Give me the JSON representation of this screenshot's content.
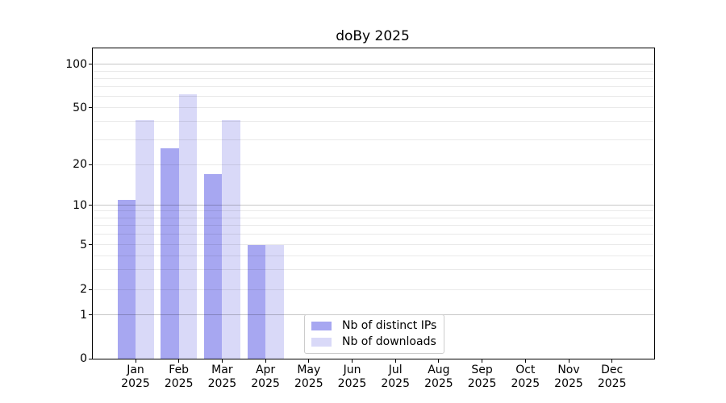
{
  "chart_data": {
    "type": "bar",
    "title": "doBy 2025",
    "x_categories": [
      "Jan",
      "Feb",
      "Mar",
      "Apr",
      "May",
      "Jun",
      "Jul",
      "Aug",
      "Sep",
      "Oct",
      "Nov",
      "Dec"
    ],
    "x_year_line": "2025",
    "series": [
      {
        "name": "Nb of distinct IPs",
        "color": "#a7a7f1",
        "values": [
          11,
          26,
          17,
          5,
          0,
          0,
          0,
          0,
          0,
          0,
          0,
          0
        ]
      },
      {
        "name": "Nb of downloads",
        "color": "#d9d9f8",
        "values": [
          41,
          62,
          41,
          5,
          0,
          0,
          0,
          0,
          0,
          0,
          0,
          0
        ]
      }
    ],
    "y_axis": {
      "scale": "asinh",
      "tick_values": [
        0,
        1,
        2,
        5,
        10,
        20,
        50,
        100
      ],
      "ylim": [
        0,
        130
      ],
      "major_grid_values": [
        1,
        10,
        100
      ],
      "minor_grid_values": [
        2,
        3,
        4,
        5,
        6,
        7,
        8,
        9,
        20,
        30,
        40,
        50,
        60,
        70,
        80,
        90
      ],
      "scale_anchors": [
        [
          0,
          0
        ],
        [
          1,
          0.1403
        ],
        [
          2,
          0.2226
        ],
        [
          5,
          0.367
        ],
        [
          10,
          0.4948
        ],
        [
          20,
          0.6252
        ],
        [
          50,
          0.8086
        ],
        [
          100,
          0.9481
        ]
      ]
    },
    "legend": {
      "position": "lower center"
    },
    "grid": true
  },
  "colors": {
    "background": "#ffffff",
    "spine": "#000000",
    "bar_distinct_ips": "#a7a7f1",
    "bar_downloads": "#d9d9f8",
    "major_grid": "rgba(0,0,0,0.22)",
    "minor_grid": "rgba(0,0,0,0.085)",
    "text": "#000000",
    "legend_border": "#cccccc"
  }
}
